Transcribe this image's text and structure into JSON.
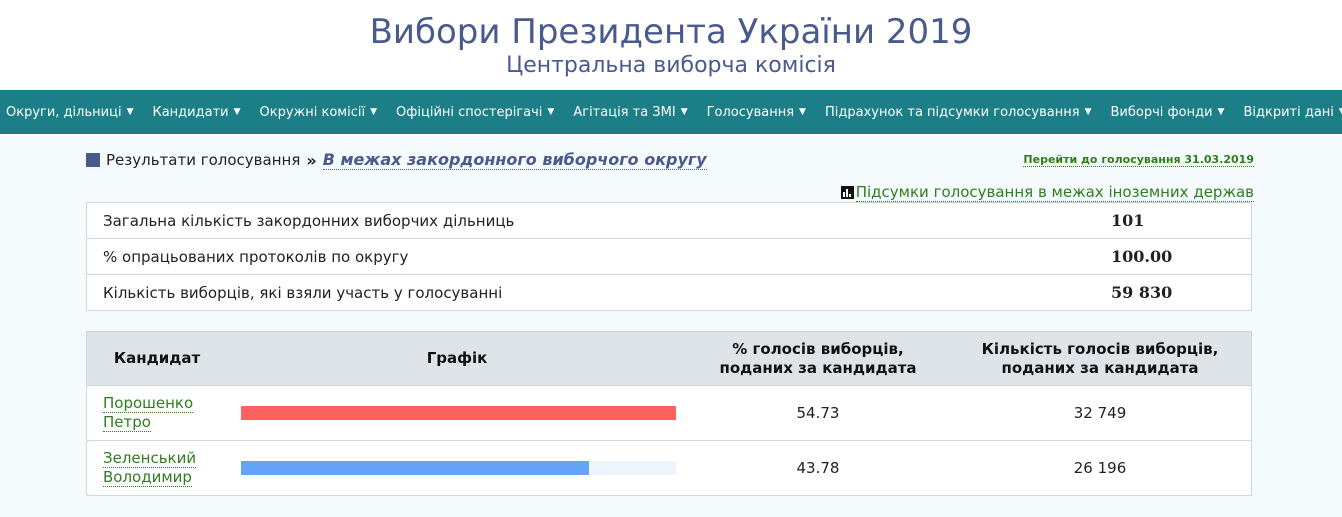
{
  "header": {
    "title": "Вибори Президента України 2019",
    "subtitle": "Центральна виборча комісія"
  },
  "nav": {
    "items": [
      {
        "label": "Округи, дільниці"
      },
      {
        "label": "Кандидати"
      },
      {
        "label": "Окружні комісії"
      },
      {
        "label": "Офіційні спостерігачі"
      },
      {
        "label": "Агітація та ЗМІ"
      },
      {
        "label": "Голосування"
      },
      {
        "label": "Підрахунок та підсумки голосування"
      },
      {
        "label": "Виборчі фонди"
      },
      {
        "label": "Відкриті дані"
      }
    ]
  },
  "breadcrumb": {
    "root": "Результати голосування",
    "separator": "»",
    "current": "В межах закордонного виборчого округу"
  },
  "goto_link": "Перейти до голосування 31.03.2019",
  "summary_link": "Підсумки голосування в межах іноземних держав",
  "stats": [
    {
      "label": "Загальна кількість закордонних виборчих дільниць",
      "value": "101"
    },
    {
      "label": "% опрацьованих протоколів по округу",
      "value": "100.00"
    },
    {
      "label": "Кількість виборців, які взяли участь у голосуванні",
      "value": "59 830"
    }
  ],
  "results": {
    "headers": {
      "candidate": "Кандидат",
      "chart": "Графік",
      "percent_line1": "% голосів виборців,",
      "percent_line2": "поданих за кандидата",
      "count_line1": "Кількість голосів виборців,",
      "count_line2": "поданих за кандидата"
    },
    "rows": [
      {
        "surname": "Порошенко",
        "given": "Петро",
        "bar_fill": 1.0,
        "bar_color": "#ff6161",
        "percent": "54.73",
        "votes": "32 749"
      },
      {
        "surname": "Зеленський",
        "given": "Володимир",
        "bar_fill": 0.8,
        "bar_color": "#64a4f6",
        "percent": "43.78",
        "votes": "26 196"
      }
    ]
  },
  "colors": {
    "title": "#4a5a8c",
    "nav_bg": "#1c7e86",
    "link_green": "#2e7d1e",
    "content_bg": "#f5fbfd"
  }
}
